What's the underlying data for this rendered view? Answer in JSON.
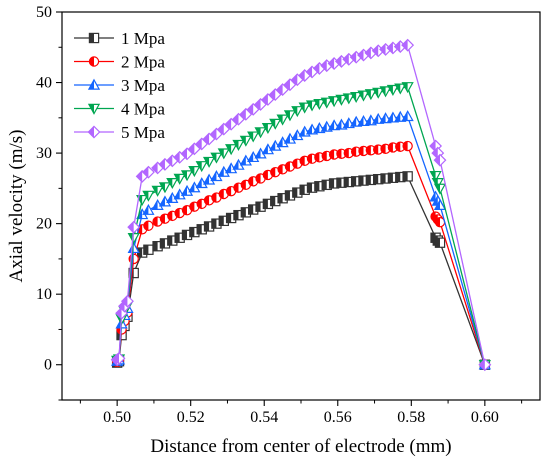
{
  "chart_data": {
    "type": "line",
    "title": "",
    "xlabel": "Distance from center of electrode (mm)",
    "ylabel": "Axial velocity (m/s)",
    "xlim": [
      0.485,
      0.615
    ],
    "ylim": [
      -5,
      50
    ],
    "x_ticks": [
      0.5,
      0.52,
      0.54,
      0.56,
      0.58,
      0.6
    ],
    "x_tick_labels": [
      "0.50",
      "0.52",
      "0.54",
      "0.56",
      "0.58",
      "0.60"
    ],
    "y_ticks": [
      0,
      10,
      20,
      30,
      40,
      50
    ],
    "y_tick_labels": [
      "0",
      "10",
      "20",
      "30",
      "40",
      "50"
    ],
    "grid": false,
    "legend_position": "top-left",
    "x": [
      0.5,
      0.5005,
      0.5012,
      0.502,
      0.5028,
      0.5045,
      0.5068,
      0.5085,
      0.511,
      0.513,
      0.515,
      0.517,
      0.519,
      0.521,
      0.523,
      0.525,
      0.527,
      0.529,
      0.531,
      0.533,
      0.535,
      0.537,
      0.539,
      0.541,
      0.543,
      0.545,
      0.547,
      0.549,
      0.551,
      0.553,
      0.555,
      0.557,
      0.559,
      0.561,
      0.563,
      0.565,
      0.567,
      0.569,
      0.571,
      0.573,
      0.575,
      0.577,
      0.579,
      0.5866,
      0.5872,
      0.5878,
      0.6
    ],
    "series": [
      {
        "name": "1 Mpa",
        "color": "#333333",
        "marker": "square",
        "values": [
          0.3,
          0.5,
          4.2,
          5.5,
          6.8,
          13.0,
          15.9,
          16.3,
          16.8,
          17.2,
          17.6,
          18.0,
          18.4,
          18.8,
          19.2,
          19.6,
          20.0,
          20.4,
          20.8,
          21.2,
          21.6,
          22.0,
          22.4,
          22.8,
          23.2,
          23.6,
          24.0,
          24.4,
          24.8,
          25.1,
          25.3,
          25.5,
          25.7,
          25.8,
          25.9,
          26.0,
          26.1,
          26.2,
          26.3,
          26.4,
          26.5,
          26.6,
          26.7,
          18.0,
          17.6,
          17.3,
          0.0
        ]
      },
      {
        "name": "2 Mpa",
        "color": "#ff0000",
        "marker": "circle",
        "values": [
          0.4,
          0.6,
          5.0,
          6.2,
          7.4,
          15.0,
          19.2,
          19.7,
          20.3,
          20.7,
          21.1,
          21.5,
          21.9,
          22.4,
          22.8,
          23.3,
          23.7,
          24.2,
          24.6,
          25.1,
          25.5,
          26.0,
          26.4,
          26.9,
          27.3,
          27.7,
          28.1,
          28.5,
          28.9,
          29.2,
          29.4,
          29.6,
          29.8,
          29.9,
          30.0,
          30.2,
          30.3,
          30.4,
          30.5,
          30.6,
          30.8,
          30.9,
          31.0,
          21.0,
          20.6,
          20.2,
          0.0
        ]
      },
      {
        "name": "3 Mpa",
        "color": "#1565ff",
        "marker": "triangle-up",
        "values": [
          0.5,
          0.7,
          5.8,
          7.0,
          8.0,
          16.5,
          21.3,
          21.9,
          22.6,
          23.1,
          23.6,
          24.1,
          24.6,
          25.1,
          25.7,
          26.2,
          26.7,
          27.3,
          27.8,
          28.3,
          28.9,
          29.4,
          29.9,
          30.5,
          31.0,
          31.5,
          32.0,
          32.5,
          33.0,
          33.3,
          33.5,
          33.7,
          33.9,
          34.0,
          34.2,
          34.4,
          34.5,
          34.6,
          34.8,
          34.9,
          35.0,
          35.1,
          35.2,
          23.8,
          23.2,
          22.6,
          0.0
        ]
      },
      {
        "name": "4 Mpa",
        "color": "#00a651",
        "marker": "triangle-down",
        "values": [
          0.6,
          0.8,
          6.5,
          7.6,
          8.4,
          18.0,
          23.4,
          24.0,
          24.7,
          25.2,
          25.8,
          26.4,
          26.9,
          27.5,
          28.2,
          28.8,
          29.4,
          30.0,
          30.6,
          31.2,
          31.8,
          32.4,
          33.0,
          33.6,
          34.2,
          34.8,
          35.4,
          36.0,
          36.5,
          36.8,
          37.0,
          37.2,
          37.4,
          37.6,
          37.8,
          38.0,
          38.2,
          38.4,
          38.6,
          38.8,
          39.0,
          39.2,
          39.4,
          26.8,
          25.8,
          25.0,
          0.0
        ]
      },
      {
        "name": "5 Mpa",
        "color": "#b266ff",
        "marker": "diamond",
        "values": [
          0.7,
          0.9,
          7.3,
          8.3,
          9.0,
          19.5,
          26.7,
          27.3,
          27.9,
          28.4,
          28.9,
          29.4,
          29.9,
          30.6,
          31.3,
          32.0,
          32.7,
          33.4,
          34.1,
          34.8,
          35.5,
          36.2,
          36.9,
          37.6,
          38.3,
          39.0,
          39.7,
          40.4,
          41.0,
          41.5,
          42.0,
          42.4,
          42.7,
          43.0,
          43.3,
          43.6,
          43.9,
          44.2,
          44.5,
          44.7,
          44.9,
          45.1,
          45.3,
          31.0,
          30.0,
          29.0,
          0.0
        ]
      }
    ]
  }
}
